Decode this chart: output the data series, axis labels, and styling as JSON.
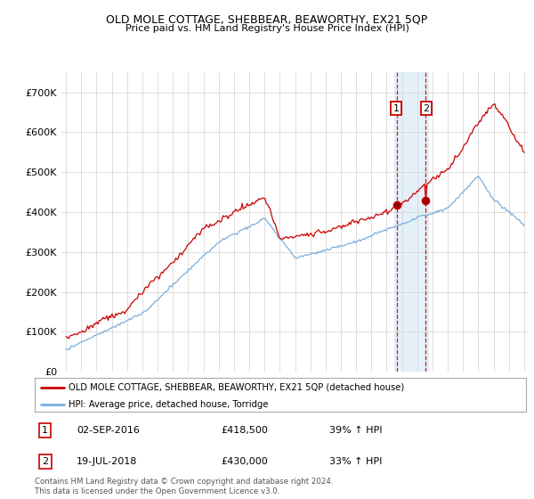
{
  "title": "OLD MOLE COTTAGE, SHEBBEAR, BEAWORTHY, EX21 5QP",
  "subtitle": "Price paid vs. HM Land Registry's House Price Index (HPI)",
  "legend_line1": "OLD MOLE COTTAGE, SHEBBEAR, BEAWORTHY, EX21 5QP (detached house)",
  "legend_line2": "HPI: Average price, detached house, Torridge",
  "annotation1_date": "02-SEP-2016",
  "annotation1_price": "£418,500",
  "annotation1_hpi": "39% ↑ HPI",
  "annotation2_date": "19-JUL-2018",
  "annotation2_price": "£430,000",
  "annotation2_hpi": "33% ↑ HPI",
  "footer": "Contains HM Land Registry data © Crown copyright and database right 2024.\nThis data is licensed under the Open Government Licence v3.0.",
  "red_color": "#cc0000",
  "blue_color": "#7aaedc",
  "background_color": "#ffffff",
  "ylim": [
    0,
    750000
  ],
  "yticks": [
    0,
    100000,
    200000,
    300000,
    400000,
    500000,
    600000,
    700000
  ],
  "xlim_start": 1994.7,
  "xlim_end": 2025.3,
  "marker1_x": 2016.67,
  "marker1_y": 418500,
  "marker2_x": 2018.54,
  "marker2_y": 430000,
  "shade1_x": 2016.5,
  "shade2_x": 2018.7
}
